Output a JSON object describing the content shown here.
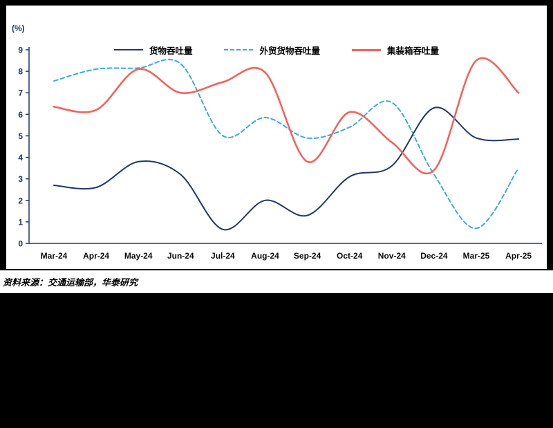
{
  "chart_data": {
    "type": "line",
    "title": "",
    "ylabel": "(%)",
    "xlabel": "",
    "ylim": [
      0,
      9
    ],
    "yticks": [
      0,
      1,
      2,
      3,
      4,
      5,
      6,
      7,
      8,
      9
    ],
    "grid": false,
    "legend_position": "top-center",
    "categories": [
      "Mar-24",
      "Apr-24",
      "May-24",
      "Jun-24",
      "Jul-24",
      "Aug-24",
      "Sep-24",
      "Oct-24",
      "Nov-24",
      "Dec-24",
      "Mar-25",
      "Apr-25"
    ],
    "series": [
      {
        "name": "货物吞吐量",
        "color": "#1F3864",
        "style": "solid",
        "width": 2,
        "values": [
          2.7,
          2.6,
          3.8,
          3.2,
          0.65,
          2.0,
          1.3,
          3.1,
          3.6,
          6.3,
          4.9,
          4.85
        ]
      },
      {
        "name": "外贸货物吞吐量",
        "color": "#3AA9DF",
        "style": "dashed",
        "width": 2,
        "values": [
          7.55,
          8.1,
          8.15,
          8.35,
          5.0,
          5.85,
          4.9,
          5.4,
          6.55,
          3.2,
          0.7,
          3.5
        ]
      },
      {
        "name": "集装箱吞吐量",
        "color": "#F4625D",
        "style": "solid",
        "width": 2.6,
        "values": [
          6.35,
          6.2,
          8.1,
          7.0,
          7.5,
          7.95,
          3.8,
          6.1,
          4.7,
          3.4,
          8.5,
          7.0
        ]
      }
    ]
  },
  "axis": {
    "color": "#1F3864"
  },
  "source": {
    "text": "资料来源：交通运输部，华泰研究"
  }
}
